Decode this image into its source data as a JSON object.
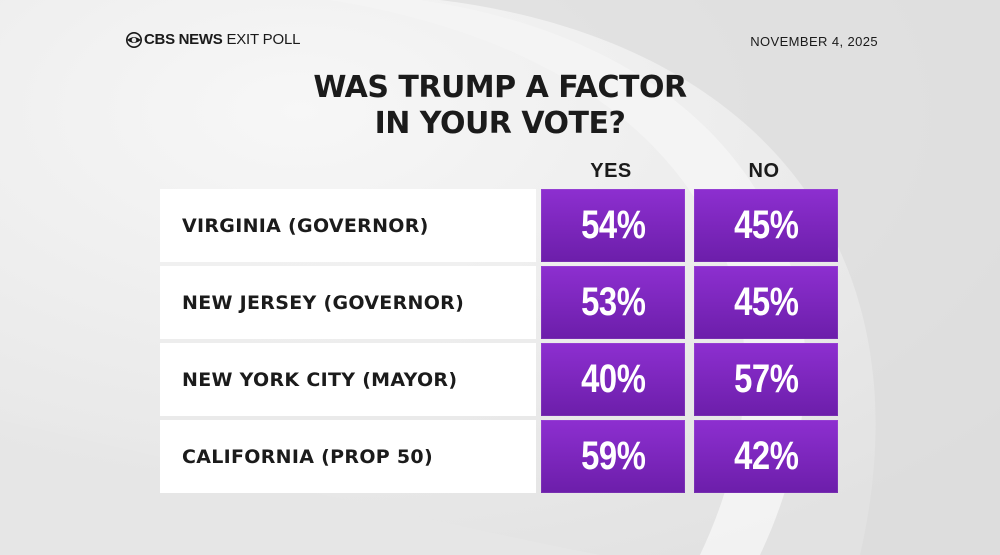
{
  "header": {
    "brand": "CBS NEWS",
    "brand_sub": "EXIT POLL",
    "date": "NOVEMBER 4, 2025"
  },
  "chart_data": {
    "type": "table",
    "title": "WAS TRUMP A FACTOR IN YOUR VOTE?",
    "title_lines": [
      "WAS TRUMP A FACTOR",
      "IN YOUR VOTE?"
    ],
    "columns": [
      "YES",
      "NO"
    ],
    "rows": [
      {
        "label": "VIRGINIA (GOVERNOR)",
        "values": [
          54,
          45
        ],
        "display": [
          "54%",
          "45%"
        ]
      },
      {
        "label": "NEW JERSEY (GOVERNOR)",
        "values": [
          53,
          45
        ],
        "display": [
          "53%",
          "45%"
        ]
      },
      {
        "label": "NEW YORK CITY (MAYOR)",
        "values": [
          40,
          57
        ],
        "display": [
          "40%",
          "57%"
        ]
      },
      {
        "label": "CALIFORNIA (PROP 50)",
        "values": [
          59,
          42
        ],
        "display": [
          "59%",
          "42%"
        ]
      }
    ],
    "unit": "%"
  },
  "colors": {
    "cell_top": "#8d2fd0",
    "cell_bottom": "#6c1eaa",
    "background": "#ececec",
    "text": "#1b1b1b"
  },
  "icons": {
    "logo": "cbs-eye-icon"
  }
}
